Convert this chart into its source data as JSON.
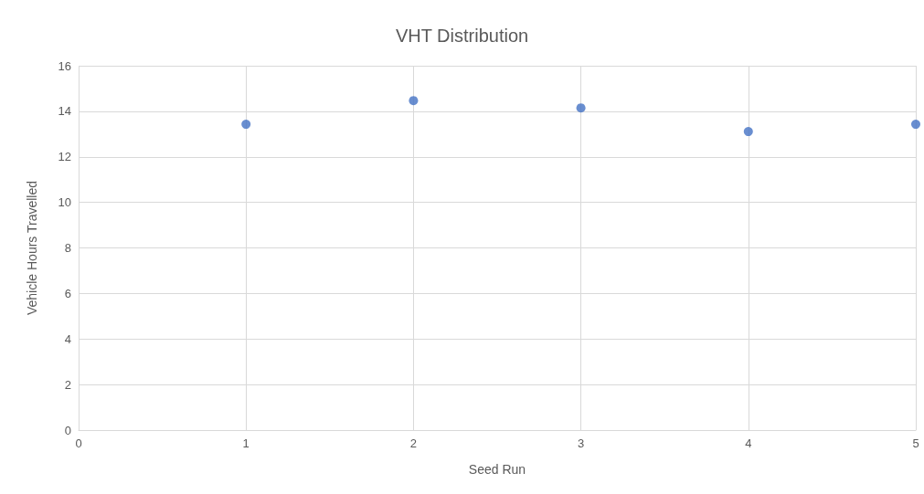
{
  "chart_data": {
    "type": "scatter",
    "title": "VHT Distribution",
    "xlabel": "Seed Run",
    "ylabel": "Vehicle Hours Travelled",
    "x": [
      1,
      2,
      3,
      4,
      5
    ],
    "series": [
      {
        "color": "#4472c4",
        "values": [
          13.43,
          14.47,
          14.15,
          13.11,
          13.43
        ]
      }
    ],
    "xlim": [
      0,
      5
    ],
    "xticks": [
      0,
      1,
      2,
      3,
      4,
      5
    ],
    "ylim": [
      0,
      16
    ],
    "yticks": [
      0,
      2,
      4,
      6,
      8,
      10,
      12,
      14,
      16
    ],
    "grid": true,
    "marker": "circle"
  }
}
